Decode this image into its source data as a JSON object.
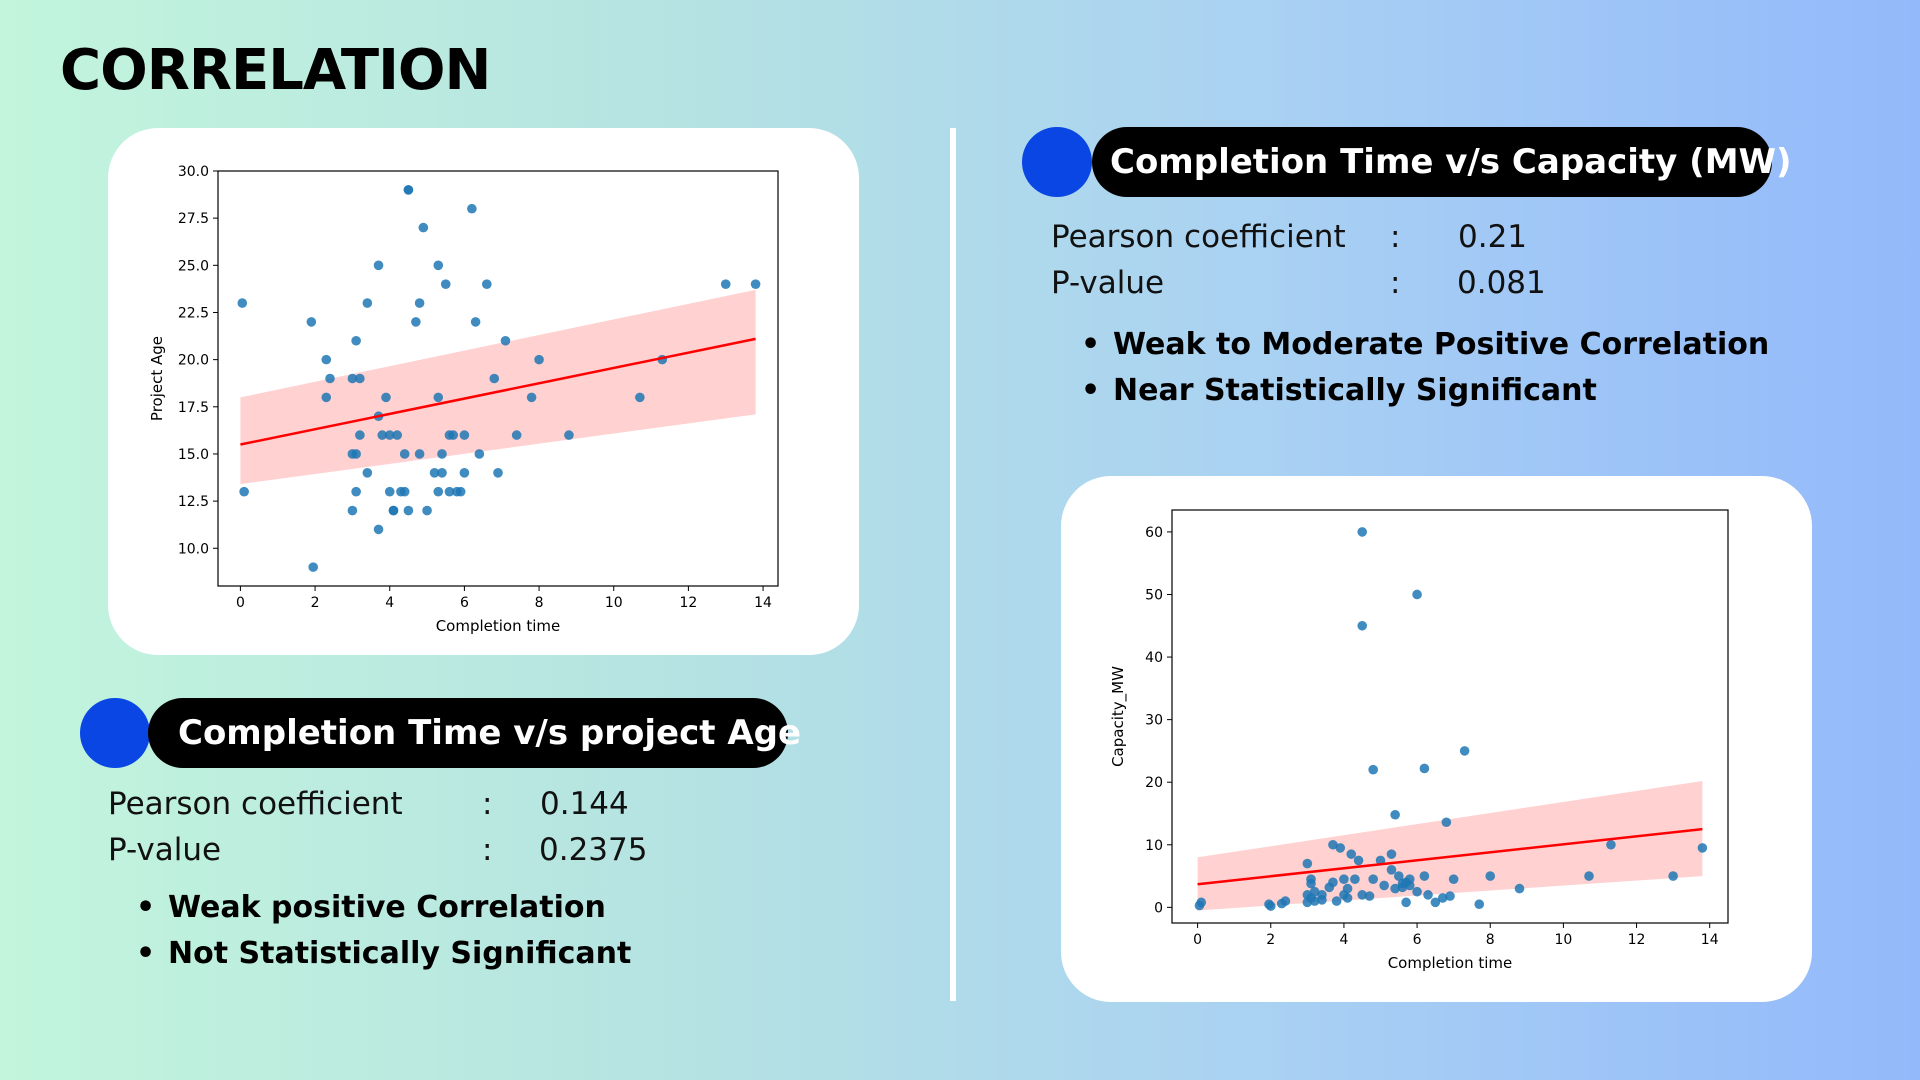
{
  "page": {
    "title": "CORRELATION"
  },
  "colors": {
    "marker": "#1f77b4",
    "fit_line": "#ff0000",
    "ci_band": "#ffb3b3",
    "accent_dot": "#0a46e4",
    "pill": "#000000"
  },
  "sections": {
    "age": {
      "title": "Completion Time v/s project Age",
      "pearson_label": "Pearson coefficient",
      "pearson_value": "0.144",
      "pvalue_label": "P-value",
      "pvalue_value": "0.2375",
      "separator": ":",
      "bullets": [
        "Weak positive Correlation",
        "Not Statistically Significant"
      ]
    },
    "capacity": {
      "title": "Completion Time v/s Capacity (MW)",
      "pearson_label": "Pearson coefficient",
      "pearson_value": "0.21",
      "pvalue_label": "P-value",
      "pvalue_value": "0.081",
      "separator": ":",
      "bullets": [
        "Weak to Moderate Positive Correlation",
        "Near Statistically Significant"
      ]
    }
  },
  "chart_data": [
    {
      "type": "scatter",
      "xlabel": "Completion time",
      "ylabel": "Project Age",
      "xlim": [
        -0.6,
        14.4
      ],
      "ylim": [
        8.0,
        30.0
      ],
      "xticks": [
        0,
        2,
        4,
        6,
        8,
        10,
        12,
        14
      ],
      "yticks": [
        10.0,
        12.5,
        15.0,
        17.5,
        20.0,
        22.5,
        25.0,
        27.5,
        30.0
      ],
      "yticks_labels": [
        "10.0",
        "12.5",
        "15.0",
        "17.5",
        "20.0",
        "22.5",
        "25.0",
        "27.5",
        "30.0"
      ],
      "grid": false,
      "regression": {
        "x": [
          0,
          13.8
        ],
        "y": [
          15.5,
          21.1
        ],
        "ci_low": [
          13.4,
          17.1
        ],
        "ci_high": [
          18.0,
          23.7
        ]
      },
      "points": [
        [
          0.05,
          23
        ],
        [
          0.1,
          13
        ],
        [
          1.9,
          22
        ],
        [
          1.95,
          9
        ],
        [
          2.3,
          20
        ],
        [
          2.4,
          19
        ],
        [
          2.3,
          18
        ],
        [
          3.0,
          19
        ],
        [
          3.2,
          19
        ],
        [
          3.1,
          21
        ],
        [
          3.2,
          16
        ],
        [
          3.1,
          15
        ],
        [
          3.0,
          15
        ],
        [
          3.1,
          13
        ],
        [
          3.0,
          12
        ],
        [
          3.4,
          14
        ],
        [
          3.4,
          23
        ],
        [
          3.7,
          25
        ],
        [
          3.7,
          17
        ],
        [
          3.8,
          16
        ],
        [
          4.0,
          16
        ],
        [
          3.9,
          18
        ],
        [
          3.7,
          11
        ],
        [
          4.0,
          13
        ],
        [
          4.1,
          12
        ],
        [
          4.1,
          12
        ],
        [
          4.2,
          16
        ],
        [
          4.3,
          13
        ],
        [
          4.4,
          15
        ],
        [
          4.4,
          13
        ],
        [
          4.5,
          12
        ],
        [
          4.5,
          29
        ],
        [
          4.5,
          29
        ],
        [
          4.7,
          22
        ],
        [
          4.8,
          23
        ],
        [
          4.9,
          27
        ],
        [
          4.8,
          15
        ],
        [
          5.0,
          12
        ],
        [
          5.2,
          14
        ],
        [
          5.3,
          25
        ],
        [
          5.3,
          18
        ],
        [
          5.3,
          13
        ],
        [
          5.4,
          15
        ],
        [
          5.4,
          14
        ],
        [
          5.5,
          24
        ],
        [
          5.6,
          16
        ],
        [
          5.6,
          13
        ],
        [
          5.7,
          16
        ],
        [
          5.8,
          13
        ],
        [
          5.9,
          13
        ],
        [
          6.0,
          14
        ],
        [
          6.0,
          16
        ],
        [
          6.2,
          28
        ],
        [
          6.3,
          22
        ],
        [
          6.4,
          15
        ],
        [
          6.6,
          24
        ],
        [
          6.8,
          19
        ],
        [
          6.9,
          14
        ],
        [
          7.1,
          21
        ],
        [
          7.4,
          16
        ],
        [
          7.8,
          18
        ],
        [
          8.0,
          20
        ],
        [
          8.8,
          16
        ],
        [
          10.7,
          18
        ],
        [
          11.3,
          20
        ],
        [
          13.0,
          24
        ],
        [
          13.8,
          24
        ]
      ]
    },
    {
      "type": "scatter",
      "xlabel": "Completion time",
      "ylabel": "Capacity_MW",
      "xlim": [
        -0.7,
        14.5
      ],
      "ylim": [
        -2.5,
        63.5
      ],
      "xticks": [
        0,
        2,
        4,
        6,
        8,
        10,
        12,
        14
      ],
      "yticks": [
        0,
        10,
        20,
        30,
        40,
        50,
        60
      ],
      "grid": false,
      "regression": {
        "x": [
          0,
          13.8
        ],
        "y": [
          3.7,
          12.5
        ],
        "ci_low": [
          -0.5,
          5.0
        ],
        "ci_high": [
          8.0,
          20.2
        ]
      },
      "points": [
        [
          0.05,
          0.3
        ],
        [
          0.1,
          0.8
        ],
        [
          1.95,
          0.5
        ],
        [
          2.0,
          0.2
        ],
        [
          2.3,
          0.6
        ],
        [
          2.4,
          1.0
        ],
        [
          3.0,
          7.0
        ],
        [
          3.1,
          4.5
        ],
        [
          3.1,
          3.8
        ],
        [
          3.0,
          2.0
        ],
        [
          3.1,
          1.5
        ],
        [
          3.2,
          1.0
        ],
        [
          3.0,
          0.8
        ],
        [
          3.2,
          2.5
        ],
        [
          3.4,
          1.2
        ],
        [
          3.4,
          2.0
        ],
        [
          3.6,
          3.2
        ],
        [
          3.7,
          4.0
        ],
        [
          3.7,
          10.0
        ],
        [
          3.8,
          1.0
        ],
        [
          3.9,
          9.5
        ],
        [
          4.0,
          4.5
        ],
        [
          4.0,
          2.0
        ],
        [
          4.1,
          1.5
        ],
        [
          4.1,
          3.0
        ],
        [
          4.2,
          8.5
        ],
        [
          4.3,
          4.5
        ],
        [
          4.4,
          7.5
        ],
        [
          4.5,
          60
        ],
        [
          4.5,
          45
        ],
        [
          4.5,
          2.0
        ],
        [
          4.7,
          1.8
        ],
        [
          4.8,
          22
        ],
        [
          4.8,
          4.5
        ],
        [
          5.0,
          7.5
        ],
        [
          5.1,
          3.5
        ],
        [
          5.3,
          6.0
        ],
        [
          5.3,
          8.5
        ],
        [
          5.4,
          14.8
        ],
        [
          5.4,
          3.0
        ],
        [
          5.5,
          5.0
        ],
        [
          5.6,
          3.8
        ],
        [
          5.6,
          3.2
        ],
        [
          5.7,
          4.0
        ],
        [
          5.7,
          0.8
        ],
        [
          5.8,
          3.5
        ],
        [
          5.8,
          4.5
        ],
        [
          6.0,
          50
        ],
        [
          6.0,
          2.5
        ],
        [
          6.2,
          22.2
        ],
        [
          6.2,
          5.0
        ],
        [
          6.3,
          2.0
        ],
        [
          6.5,
          0.8
        ],
        [
          6.7,
          1.5
        ],
        [
          6.8,
          13.6
        ],
        [
          6.9,
          1.8
        ],
        [
          7.0,
          4.5
        ],
        [
          7.3,
          25
        ],
        [
          7.7,
          0.5
        ],
        [
          8.0,
          5.0
        ],
        [
          8.8,
          3.0
        ],
        [
          10.7,
          5.0
        ],
        [
          11.3,
          10
        ],
        [
          13.0,
          5.0
        ],
        [
          13.8,
          9.5
        ]
      ]
    }
  ]
}
